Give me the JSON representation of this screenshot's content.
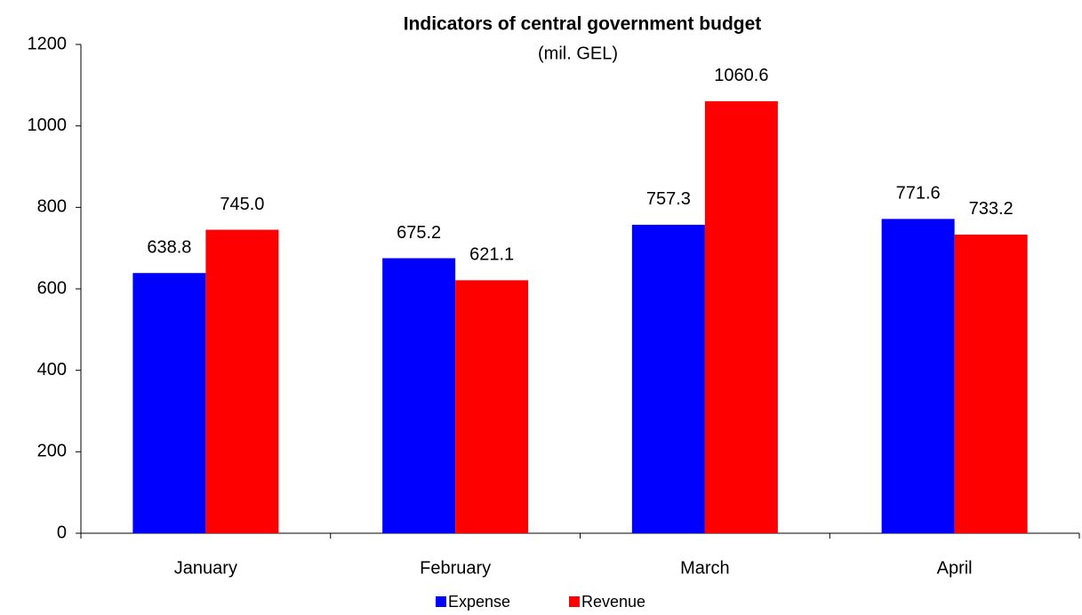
{
  "chart_data": {
    "type": "bar",
    "title": "Indicators of central government budget",
    "subtitle": "(mil. GEL)",
    "categories": [
      "January",
      "February",
      "March",
      "April"
    ],
    "series": [
      {
        "name": "Expense",
        "color": "#0000ff",
        "values": [
          638.8,
          675.2,
          757.3,
          771.6
        ],
        "value_labels": [
          "638.8",
          "675.2",
          "757.3",
          "771.6"
        ]
      },
      {
        "name": "Revenue",
        "color": "#ff0000",
        "values": [
          745.0,
          621.1,
          1060.6,
          733.2
        ],
        "value_labels": [
          "745.0",
          "621.1",
          "1060.6",
          "733.2"
        ]
      }
    ],
    "ylim": [
      0,
      1200
    ],
    "yticks": [
      0,
      200,
      400,
      600,
      800,
      1000,
      1200
    ],
    "grid": false,
    "legend": "bottom"
  }
}
